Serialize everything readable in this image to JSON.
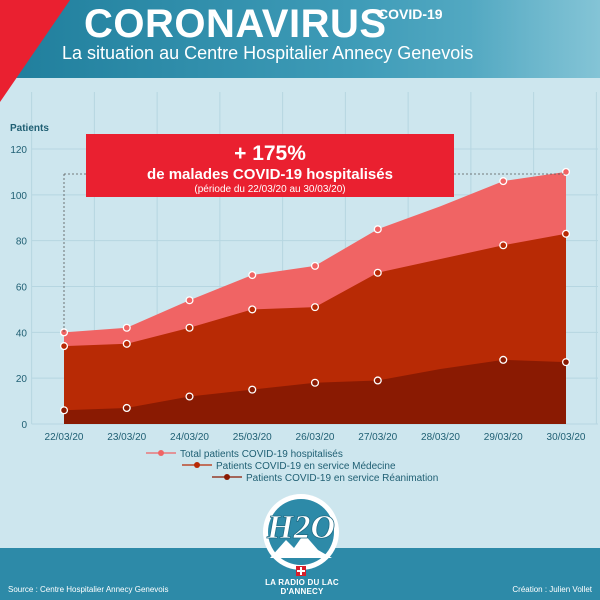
{
  "header": {
    "title": "CORONAVIRUS",
    "title_sup": "COVID-19",
    "subtitle": "La situation au Centre Hospitalier Annecy Genevois"
  },
  "colors": {
    "header": "#2a8aa8",
    "accent_red": "#ea2030",
    "total": "#f06464",
    "medecine": "#b82a05",
    "reanimation": "#8a1a02",
    "background": "#cde6ee"
  },
  "callout": {
    "headline": "+ 175%",
    "line": "de malades COVID-19 hospitalisés",
    "note": "(période du 22/03/20 au 30/03/20)"
  },
  "chart_data": {
    "type": "area",
    "ylabel": "Patients",
    "ylim": [
      0,
      120
    ],
    "yticks": [
      0,
      20,
      40,
      60,
      80,
      100,
      120
    ],
    "categories": [
      "22/03/20",
      "23/03/20",
      "24/03/20",
      "25/03/20",
      "26/03/20",
      "27/03/20",
      "28/03/20",
      "29/03/20",
      "30/03/20"
    ],
    "grid": true,
    "legend_position": "bottom",
    "series": [
      {
        "name": "Total patients COVID-19 hospitalisés",
        "color": "#f06464",
        "values": [
          40,
          42,
          54,
          65,
          69,
          85,
          95,
          106,
          110
        ],
        "markers": [
          0,
          1,
          2,
          3,
          4,
          5,
          7,
          8
        ]
      },
      {
        "name": "Patients COVID-19 en service Médecine",
        "color": "#b82a05",
        "values": [
          34,
          35,
          42,
          50,
          51,
          66,
          72,
          78,
          83
        ],
        "markers": [
          0,
          1,
          2,
          3,
          4,
          5,
          7,
          8
        ]
      },
      {
        "name": "Patients COVID-19 en service Réanimation",
        "color": "#8a1a02",
        "values": [
          6,
          7,
          12,
          15,
          18,
          19,
          24,
          28,
          27
        ],
        "markers": [
          0,
          1,
          2,
          3,
          4,
          5,
          7,
          8
        ]
      }
    ]
  },
  "footer": {
    "source": "Source : Centre Hospitalier Annecy Genevois",
    "creation": "Création : Julien Vollet",
    "logo_text": "H2O",
    "tagline": "LA RADIO DU LAC D'ANNECY"
  }
}
